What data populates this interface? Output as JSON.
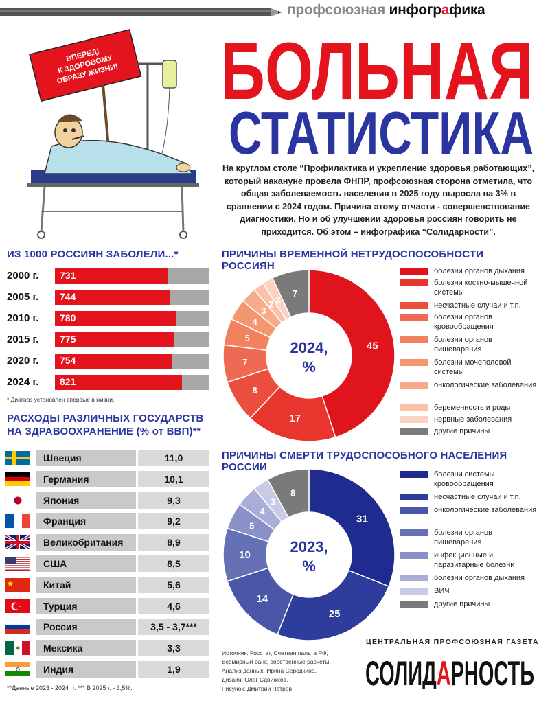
{
  "header": {
    "brand_part1": "профсоюзная",
    "brand_part2_a": "инфогр",
    "brand_part2_b": "а",
    "brand_part2_c": "фика"
  },
  "banner_text": "ВПЕРЕД! К ЗДОРОВОМУ ОБРАЗУ ЖИЗНИ!",
  "title": {
    "line1": "БОЛЬНАЯ",
    "line2": "СТАТИСТИКА"
  },
  "intro": "На круглом столе “Профилактика и укрепление здоровья работающих”, который накануне провела ФНПР, профсоюзная сторона отметила, что общая заболеваемость населения в 2025 году выросла на 3% в сравнении с 2024 годом. Причина этому отчасти - совершенствование диагностики. Но и об улучшении здоровья россиян говорить не приходится. Об этом – инфографика “Солидарности”.",
  "sick": {
    "title": "ИЗ 1000 РОССИЯН ЗАБОЛЕЛИ...*",
    "footnote": "* Диагноз установлен впервые в жизни."
  },
  "spending": {
    "title_line1": "РАСХОДЫ РАЗЛИЧНЫХ ГОСУДАРСТВ",
    "title_line2": "НА ЗДРАВООХРАНЕНИЕ (% от ВВП)**",
    "footnote": "**Данные 2023 - 2024 гг.    *** В 2025 г. - 3,5%."
  },
  "donut1": {
    "title": "ПРИЧИНЫ ВРЕМЕННОЙ НЕТРУДОСПОСОБНОСТИ РОССИЯН",
    "center_line1": "2024,",
    "center_line2": "%"
  },
  "donut2": {
    "title": "ПРИЧИНЫ СМЕРТИ ТРУДОСПОСОБНОГО НАСЕЛЕНИЯ РОССИИ",
    "center_line1": "2023,",
    "center_line2": "%"
  },
  "credits": {
    "source": "Источник: Росстат, Счетная палата РФ,",
    "source2": "Всемирный банк, собственные расчеты.",
    "analysis": "Анализ данных: Ирина Середкина.",
    "design": "Дизайн: Олег Сдвижков.",
    "drawing": "Рисунок: Дмитрий Петров"
  },
  "newspaper": {
    "label": "ЦЕНТРАЛЬНАЯ ПРОФСОЮЗНАЯ ГАЗЕТА",
    "logo_a": "СОЛИД",
    "logo_b": "А",
    "logo_c": "РНОСТЬ"
  },
  "chart_data": [
    {
      "type": "bar",
      "title": "ИЗ 1000 РОССИЯН ЗАБОЛЕЛИ...*",
      "categories": [
        "2000 г.",
        "2005 г.",
        "2010 г.",
        "2015 г.",
        "2020 г.",
        "2024 г."
      ],
      "values": [
        731,
        744,
        780,
        775,
        754,
        821
      ],
      "ylim": [
        0,
        1000
      ],
      "colors": {
        "bar": "#e3141e",
        "track": "#a8a8a8"
      }
    },
    {
      "type": "table",
      "title": "РАСХОДЫ РАЗЛИЧНЫХ ГОСУДАРСТВ НА ЗДРАВООХРАНЕНИЕ (% от ВВП)**",
      "rows": [
        {
          "country": "Швеция",
          "value": "11,0",
          "flag": "sweden-flag"
        },
        {
          "country": "Германия",
          "value": "10,1",
          "flag": "germany-flag"
        },
        {
          "country": "Япония",
          "value": "9,3",
          "flag": "japan-flag"
        },
        {
          "country": "Франция",
          "value": "9,2",
          "flag": "france-flag"
        },
        {
          "country": "Великобритания",
          "value": "8,9",
          "flag": "uk-flag"
        },
        {
          "country": "США",
          "value": "8,5",
          "flag": "usa-flag"
        },
        {
          "country": "Китай",
          "value": "5,6",
          "flag": "china-flag"
        },
        {
          "country": "Турция",
          "value": "4,6",
          "flag": "turkey-flag"
        },
        {
          "country": "Россия",
          "value": "3,5 - 3,7***",
          "flag": "russia-flag"
        },
        {
          "country": "Мексика",
          "value": "3,3",
          "flag": "mexico-flag"
        },
        {
          "country": "Индия",
          "value": "1,9",
          "flag": "india-flag"
        }
      ]
    },
    {
      "type": "pie",
      "title": "ПРИЧИНЫ ВРЕМЕННОЙ НЕТРУДОСПОСОБНОСТИ РОССИЯН",
      "slices": [
        {
          "label": "болезни органов дыхания",
          "value": 45,
          "color": "#e0141c"
        },
        {
          "label": "болезни костно-мышечной системы",
          "value": 17,
          "color": "#e8362e"
        },
        {
          "label": "несчастные случаи и т.п.",
          "value": 8,
          "color": "#ec4e3e"
        },
        {
          "label": "болезни органов кровообращения",
          "value": 7,
          "color": "#ef6a52"
        },
        {
          "label": "болезни органов пищеварения",
          "value": 5,
          "color": "#f2815f"
        },
        {
          "label": "болезни мочеполовой системы",
          "value": 4,
          "color": "#f49670"
        },
        {
          "label": "онкологические заболевания",
          "value": 3,
          "color": "#f6ab8a"
        },
        {
          "label": "беременность и роды",
          "value": 2,
          "color": "#f8c1a8"
        },
        {
          "label": "нервные заболевания",
          "value": 2,
          "color": "#fad3c2"
        },
        {
          "label": "другие причины",
          "value": 7,
          "color": "#7a7a7a"
        }
      ]
    },
    {
      "type": "pie",
      "title": "ПРИЧИНЫ СМЕРТИ ТРУДОСПОСОБНОГО НАСЕЛЕНИЯ РОССИИ",
      "slices": [
        {
          "label": "болезни системы кровообращения",
          "value": 31,
          "color": "#1f2b8f"
        },
        {
          "label": "несчастные случаи и т.п.",
          "value": 25,
          "color": "#2e3c9c"
        },
        {
          "label": "онкологические заболевания",
          "value": 14,
          "color": "#4a56a8"
        },
        {
          "label": "болезни органов пищеварения",
          "value": 10,
          "color": "#6570b5"
        },
        {
          "label": "инфекционные и паразитарные болезни",
          "value": 5,
          "color": "#8a91c8"
        },
        {
          "label": "болезни органов дыхания",
          "value": 4,
          "color": "#a9aed8"
        },
        {
          "label": "ВИЧ",
          "value": 3,
          "color": "#c8cbe6"
        },
        {
          "label": "другие причины",
          "value": 8,
          "color": "#7a7a7a"
        }
      ]
    }
  ]
}
